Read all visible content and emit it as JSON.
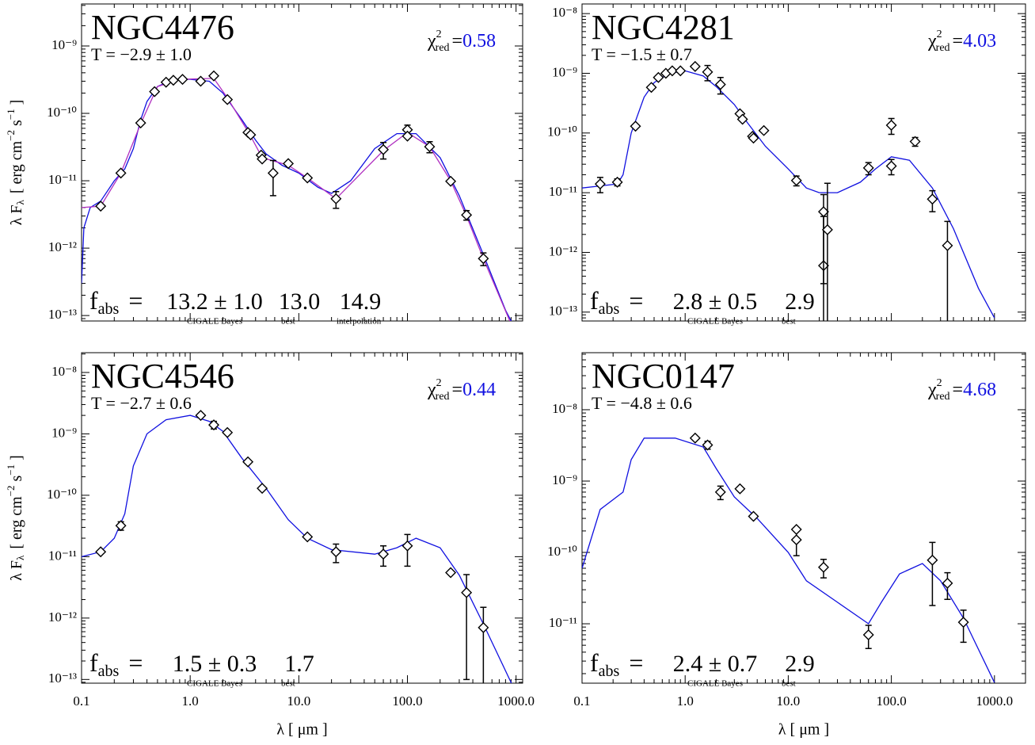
{
  "labels": {
    "y_axis": {
      "lam": "λ F",
      "lam_sub": "λ",
      "unit_a": "[ erg cm",
      "unit_a_sup": "−2",
      "unit_b": " s",
      "unit_b_sup": "−1",
      "unit_c": " ]"
    },
    "x_axis": "λ [ μm ]",
    "chi_symbol": "χ",
    "chi_sup": "2",
    "chi_sub": "red",
    "chi_eq": "=",
    "f_symbol": "f",
    "f_sub": "abs",
    "f_eq": "=",
    "bayes_note": "CIGALE Bayes",
    "best_note": "best",
    "interp_note": "interpolation"
  },
  "chart_data": [
    {
      "type": "sed",
      "title": "NGC4476",
      "subtitle": "T = −2.9 ± 1.0",
      "chi2": 0.58,
      "fabs": {
        "bayes": "13.2 ± 1.0",
        "best": "13.0",
        "interp": "14.9"
      },
      "xlim": [
        0.1,
        1150
      ],
      "ylim": [
        8.3e-14,
        4.2e-09
      ],
      "log": true,
      "xticks": [
        0.1,
        {
          "value": 1,
          "label": "1.0"
        },
        {
          "value": 10,
          "label": "10.0"
        },
        {
          "value": 100,
          "label": "100.0"
        },
        {
          "value": 1000,
          "label": "1000.0"
        }
      ],
      "yticks": [
        {
          "value": 1e-13,
          "label": "10⁻¹³"
        },
        {
          "value": 1e-12,
          "label": "10⁻¹²"
        },
        {
          "value": 1e-11,
          "label": "10⁻¹¹"
        },
        {
          "value": 1e-10,
          "label": "10⁻¹⁰"
        },
        {
          "value": 1e-09,
          "label": "10⁻⁹"
        }
      ],
      "series": [
        {
          "color": "#1010e0",
          "x": [
            0.1,
            0.105,
            0.12,
            0.15,
            0.2,
            0.25,
            0.3,
            0.35,
            0.4,
            0.5,
            0.7,
            1.0,
            1.5,
            2,
            3,
            4,
            5,
            7,
            10,
            15,
            20,
            30,
            50,
            80,
            120,
            200,
            300,
            500,
            800,
            1000
          ],
          "values": [
            3e-13,
            2e-12,
            4e-12,
            5e-12,
            1e-11,
            1.5e-11,
            3e-11,
            8e-11,
            1.5e-10,
            2.5e-10,
            3.2e-10,
            3.2e-10,
            3e-10,
            2e-10,
            8e-11,
            4e-11,
            2.5e-11,
            1.7e-11,
            1.3e-11,
            8e-12,
            6.5e-12,
            1e-11,
            3e-11,
            5e-11,
            5e-11,
            2.2e-11,
            6e-12,
            8e-13,
            1.2e-13,
            6e-14
          ]
        },
        {
          "color": "#b030c0",
          "x": [
            0.1,
            0.15,
            0.23,
            0.35,
            0.5,
            0.8,
            1.65,
            2.2,
            3.5,
            4.6,
            8,
            12,
            22,
            60,
            100,
            160,
            250,
            350,
            500,
            1000
          ],
          "values": [
            4e-12,
            4.2e-12,
            1.3e-11,
            7e-11,
            2.5e-10,
            3.2e-10,
            3.3e-10,
            1.7e-10,
            5e-11,
            2.2e-11,
            1.7e-11,
            1.1e-11,
            5.4e-12,
            2.8e-11,
            5.2e-11,
            3.2e-11,
            1e-11,
            3e-12,
            7e-13,
            5e-14
          ]
        }
      ],
      "points": {
        "x": [
          0.15,
          0.23,
          0.35,
          0.47,
          0.6,
          0.7,
          0.85,
          1.25,
          1.65,
          2.2,
          3.4,
          3.6,
          4.5,
          4.6,
          5.8,
          8,
          12,
          22,
          60,
          100,
          100,
          160,
          250,
          350,
          500
        ],
        "values": [
          4.2e-12,
          1.3e-11,
          7.2e-11,
          2.1e-10,
          2.9e-10,
          3.1e-10,
          3.2e-10,
          3e-10,
          3.6e-10,
          1.6e-10,
          5.2e-11,
          4.8e-11,
          2.4e-11,
          2.1e-11,
          1.3e-11,
          1.8e-11,
          1.1e-11,
          5.4e-12,
          2.9e-11,
          5.7e-11,
          4.6e-11,
          3.2e-11,
          9.8e-12,
          3.1e-12,
          7e-13
        ],
        "yerr": [
          null,
          null,
          null,
          null,
          null,
          null,
          null,
          null,
          null,
          null,
          null,
          null,
          null,
          null,
          7e-12,
          null,
          null,
          1.5e-12,
          8e-12,
          1e-11,
          null,
          6e-12,
          null,
          5e-13,
          1.5e-13
        ]
      }
    },
    {
      "type": "sed",
      "title": "NGC4281",
      "subtitle": "T = −1.5 ± 0.7",
      "chi2": 4.03,
      "fabs": {
        "bayes": "2.8 ± 0.5",
        "best": "2.9"
      },
      "xlim": [
        0.1,
        2000
      ],
      "ylim": [
        7.1e-14,
        1.45e-08
      ],
      "log": true,
      "xticks": [
        0.1,
        {
          "value": 1,
          "label": "1.0"
        },
        {
          "value": 10,
          "label": "10.0"
        },
        {
          "value": 100,
          "label": "100.0"
        },
        {
          "value": 1000,
          "label": "1000.0"
        }
      ],
      "yticks": [
        {
          "value": 1e-13,
          "label": "10⁻¹³"
        },
        {
          "value": 1e-12,
          "label": "10⁻¹²"
        },
        {
          "value": 1e-11,
          "label": "10⁻¹¹"
        },
        {
          "value": 1e-10,
          "label": "10⁻¹⁰"
        },
        {
          "value": 1e-09,
          "label": "10⁻⁹"
        },
        {
          "value": 1e-08,
          "label": "10⁻⁸"
        }
      ],
      "series": [
        {
          "color": "#1010e0",
          "x": [
            0.1,
            0.15,
            0.22,
            0.25,
            0.3,
            0.4,
            0.5,
            0.7,
            1.0,
            1.5,
            2,
            3,
            4,
            6,
            10,
            15,
            20,
            30,
            50,
            70,
            100,
            150,
            250,
            400,
            700,
            1000
          ],
          "values": [
            1.2e-11,
            1.3e-11,
            1.4e-11,
            2e-11,
            1e-10,
            4e-10,
            7e-10,
            1e-09,
            1.1e-09,
            9e-10,
            6e-10,
            3e-10,
            1.5e-10,
            6e-11,
            2.5e-11,
            1.2e-11,
            1e-11,
            1e-11,
            1.5e-11,
            2.5e-11,
            4e-11,
            3.5e-11,
            1.2e-11,
            2.5e-12,
            2.5e-13,
            8e-14
          ]
        }
      ],
      "points": {
        "x": [
          0.15,
          0.22,
          0.33,
          0.47,
          0.55,
          0.65,
          0.75,
          0.9,
          1.25,
          1.65,
          2.2,
          3.4,
          3.6,
          4.5,
          4.6,
          5.8,
          12,
          22,
          22,
          24,
          60,
          100,
          100,
          170,
          250,
          350
        ],
        "values": [
          1.4e-11,
          1.5e-11,
          1.3e-10,
          5.8e-10,
          8.5e-10,
          1e-09,
          1.1e-09,
          1.1e-09,
          1.3e-09,
          1.05e-09,
          6.5e-10,
          2.1e-10,
          1.7e-10,
          8.8e-11,
          8.2e-11,
          1.1e-10,
          1.6e-11,
          6e-13,
          4.8e-12,
          2.4e-12,
          2.6e-11,
          1.35e-10,
          2.8e-11,
          7.2e-11,
          7.8e-12,
          1.3e-12
        ],
        "yerr": [
          4e-12,
          2e-12,
          null,
          null,
          null,
          null,
          null,
          null,
          null,
          3e-10,
          2e-10,
          null,
          null,
          null,
          null,
          null,
          3e-12,
          3.4e-12,
          4.5e-12,
          1.2e-11,
          6e-12,
          4e-11,
          8e-12,
          1.2e-11,
          3e-12,
          2e-12
        ]
      }
    },
    {
      "type": "sed",
      "title": "NGC4546",
      "subtitle": "T = −2.7 ± 0.6",
      "chi2": 0.44,
      "fabs": {
        "bayes": "1.5 ± 0.3",
        "best": "1.7"
      },
      "xlim": [
        0.1,
        1150
      ],
      "ylim": [
        8.7e-14,
        2.1e-08
      ],
      "log": true,
      "xticks": [
        0.1,
        {
          "value": 1,
          "label": "1.0"
        },
        {
          "value": 10,
          "label": "10.0"
        },
        {
          "value": 100,
          "label": "100.0"
        },
        {
          "value": 1000,
          "label": "1000.0"
        }
      ],
      "yticks": [
        {
          "value": 1e-13,
          "label": "10⁻¹³"
        },
        {
          "value": 1e-12,
          "label": "10⁻¹²"
        },
        {
          "value": 1e-11,
          "label": "10⁻¹¹"
        },
        {
          "value": 1e-10,
          "label": "10⁻¹⁰"
        },
        {
          "value": 1e-09,
          "label": "10⁻⁹"
        },
        {
          "value": 1e-08,
          "label": "10⁻⁸"
        }
      ],
      "series": [
        {
          "color": "#1010e0",
          "x": [
            0.1,
            0.15,
            0.2,
            0.25,
            0.3,
            0.4,
            0.6,
            1.0,
            1.5,
            2,
            3,
            5,
            8,
            12,
            20,
            50,
            80,
            120,
            200,
            300,
            500,
            1000
          ],
          "values": [
            1e-11,
            1.2e-11,
            2e-11,
            5e-11,
            3e-10,
            1e-09,
            1.7e-09,
            2e-09,
            1.6e-09,
            1.1e-09,
            4e-10,
            1.3e-10,
            4e-11,
            2e-11,
            1.3e-11,
            1.1e-11,
            1.4e-11,
            2e-11,
            1.4e-11,
            5e-12,
            8e-13,
            6e-14
          ]
        }
      ],
      "points": {
        "x": [
          0.15,
          0.23,
          1.25,
          1.65,
          2.2,
          3.4,
          4.6,
          12,
          22,
          60,
          100,
          250,
          350,
          500
        ],
        "values": [
          1.2e-11,
          3.2e-11,
          2e-09,
          1.4e-09,
          1.05e-09,
          3.5e-10,
          1.3e-10,
          2.1e-11,
          1.2e-11,
          1.1e-11,
          1.5e-11,
          5.5e-12,
          2.6e-12,
          7e-13
        ],
        "yerr": [
          null,
          5e-12,
          null,
          2e-10,
          null,
          null,
          null,
          null,
          4e-12,
          4e-12,
          8e-12,
          null,
          2.5e-12,
          8e-13
        ]
      }
    },
    {
      "type": "sed",
      "title": "NGC0147",
      "subtitle": "T = −4.8 ± 0.6",
      "chi2": 4.68,
      "fabs": {
        "bayes": "2.4 ± 0.7",
        "best": "2.9"
      },
      "xlim": [
        0.1,
        2000
      ],
      "ylim": [
        1.47e-12,
        6.3e-08
      ],
      "log": true,
      "xticks": [
        0.1,
        {
          "value": 1,
          "label": "1.0"
        },
        {
          "value": 10,
          "label": "10.0"
        },
        {
          "value": 100,
          "label": "100.0"
        },
        {
          "value": 1000,
          "label": "1000.0"
        }
      ],
      "yticks": [
        {
          "value": 1e-11,
          "label": "10⁻¹¹"
        },
        {
          "value": 1e-10,
          "label": "10⁻¹⁰"
        },
        {
          "value": 1e-09,
          "label": "10⁻⁹"
        },
        {
          "value": 1e-08,
          "label": "10⁻⁸"
        }
      ],
      "series": [
        {
          "color": "#1010e0",
          "x": [
            0.1,
            0.15,
            0.25,
            0.3,
            0.4,
            0.8,
            1.5,
            2,
            3,
            5,
            10,
            15,
            30,
            60,
            80,
            120,
            200,
            300,
            500,
            1000
          ],
          "values": [
            6e-11,
            4e-10,
            7e-10,
            2e-09,
            4e-09,
            4e-09,
            3e-09,
            1.5e-09,
            6e-10,
            3e-10,
            1e-10,
            4e-11,
            2e-11,
            1e-11,
            2e-11,
            5e-11,
            7e-11,
            4e-11,
            1.2e-11,
            1.5e-12
          ]
        }
      ],
      "points": {
        "x": [
          1.25,
          1.65,
          2.2,
          3.4,
          4.6,
          12,
          12,
          22,
          60,
          250,
          350,
          500
        ],
        "values": [
          4e-09,
          3.2e-09,
          7e-10,
          7.8e-10,
          3.2e-10,
          1.5e-10,
          2.1e-10,
          6.2e-11,
          7e-12,
          7.8e-11,
          3.7e-11,
          1.05e-11
        ],
        "yerr": [
          null,
          4e-10,
          1.5e-10,
          null,
          null,
          6e-11,
          null,
          1.8e-11,
          2.5e-12,
          6e-11,
          1.5e-11,
          5e-12
        ]
      }
    }
  ]
}
